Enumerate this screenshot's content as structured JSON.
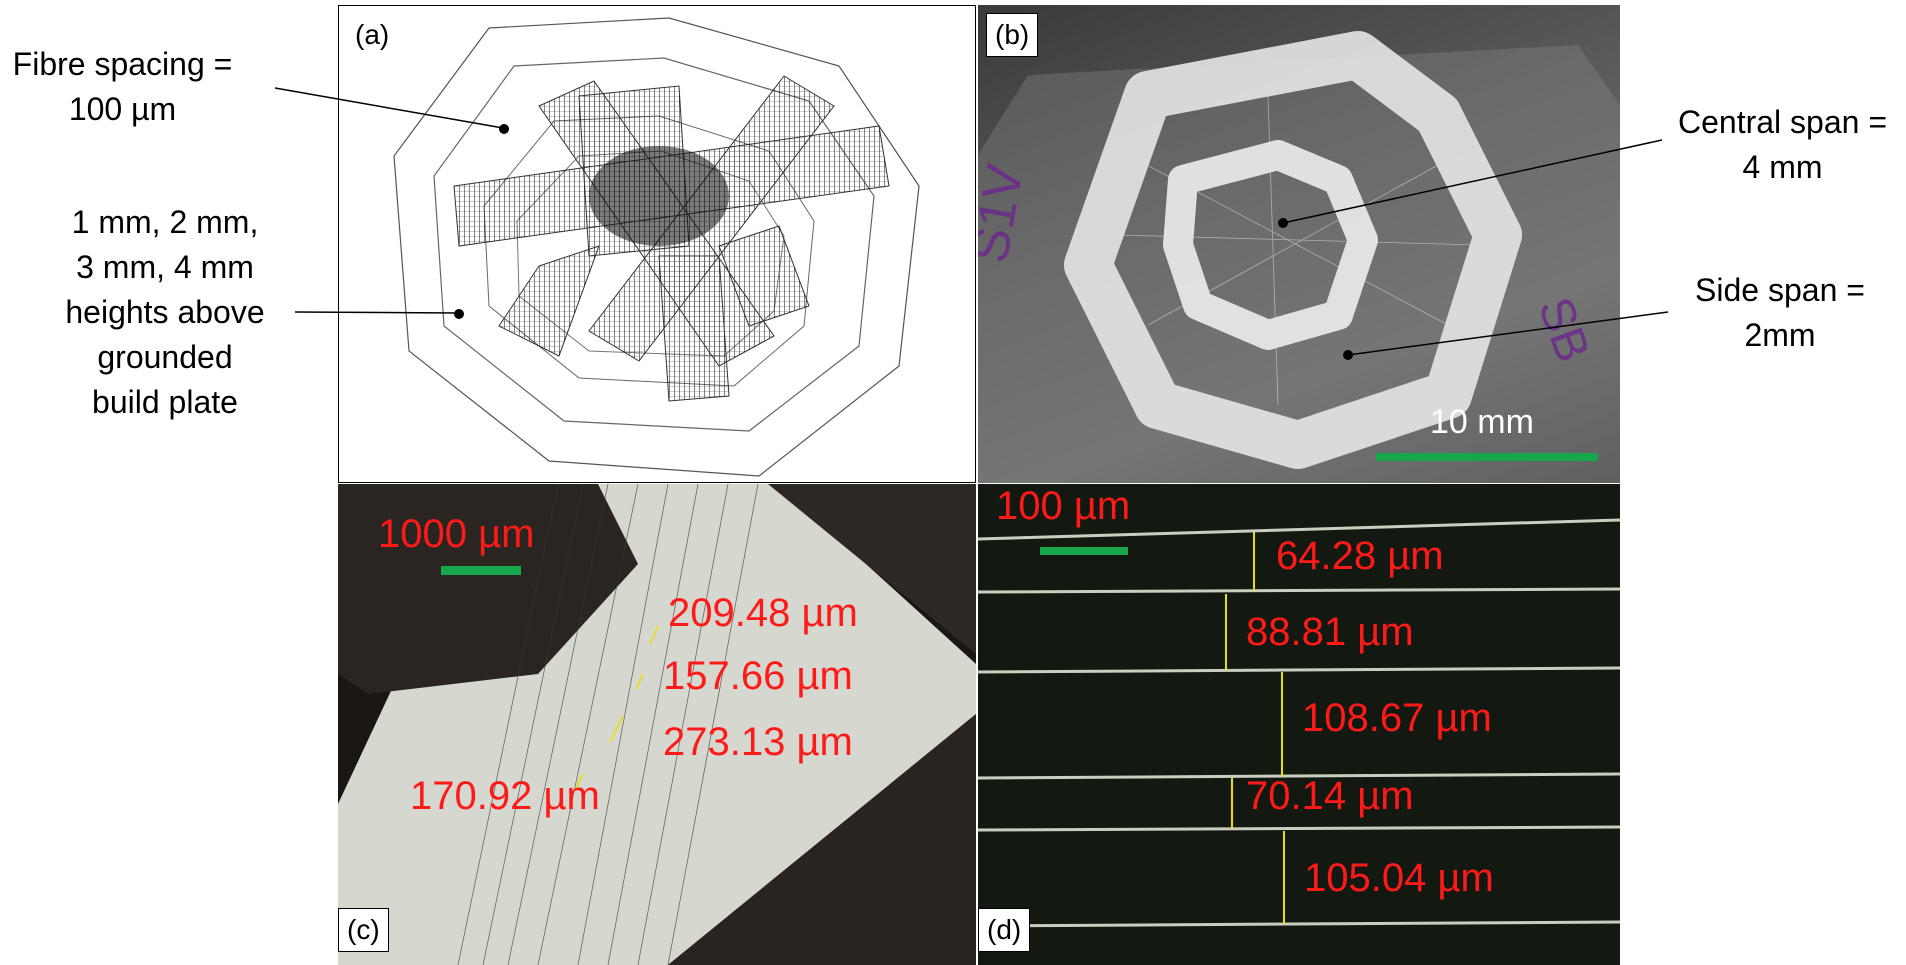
{
  "annotations": {
    "fibre_spacing": [
      "Fibre spacing =",
      "100 µm"
    ],
    "heights": [
      "1 mm, 2 mm,",
      "3 mm, 4 mm",
      "heights above",
      "grounded",
      "build plate"
    ],
    "central_span": [
      "Central span =",
      "4 mm"
    ],
    "side_span": [
      "Side span =",
      "2mm"
    ]
  },
  "panels": {
    "a": {
      "label": "(a)"
    },
    "b": {
      "label": "(b)",
      "scale_bar": "10 mm"
    },
    "c": {
      "label": "(c)",
      "scale_bar": "1000 µm",
      "measurements": [
        "209.48 µm",
        "157.66 µm",
        "273.13 µm",
        "170.92 µm"
      ]
    },
    "d": {
      "label": "(d)",
      "scale_bar": "100 µm",
      "measurements": [
        "64.28 µm",
        "88.81 µm",
        "108.67 µm",
        "70.14 µm",
        "105.04 µm"
      ]
    }
  },
  "colors": {
    "measurement_text": "#ff1a1a",
    "scale_bar": "#17a64a",
    "fibre_marker": "#e8e000"
  }
}
